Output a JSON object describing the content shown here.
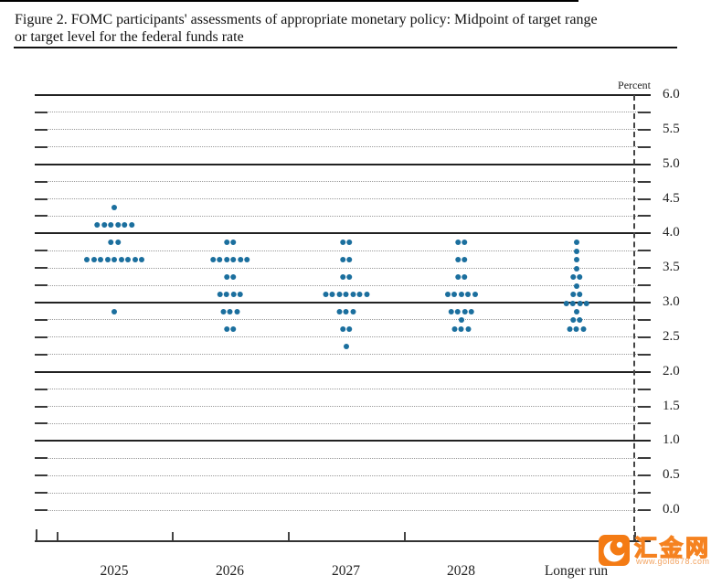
{
  "page": {
    "title_line1": "Figure 2. FOMC participants' assessments of appropriate monetary policy: Midpoint of target range",
    "title_line2": "or target level for the federal funds rate"
  },
  "chart_data": {
    "type": "scatter",
    "title": "FOMC participants' assessments of appropriate monetary policy: Midpoint of target range or target level for the federal funds rate",
    "ylabel": "Percent",
    "dot_color": "#1b6f9e",
    "y_axis": {
      "min": 0.0,
      "max": 6.0,
      "grid_step": 0.25,
      "label_step": 0.5,
      "solid_levels": [
        6.0,
        5.0,
        4.0,
        3.0,
        2.0,
        1.0
      ],
      "tick_labels": [
        "6.0",
        "5.5",
        "5.0",
        "4.5",
        "4.0",
        "3.5",
        "3.0",
        "2.5",
        "2.0",
        "1.5",
        "1.0",
        "0.5",
        "0.0"
      ]
    },
    "categories": [
      "2025",
      "2026",
      "2027",
      "2028",
      "Longer run"
    ],
    "separator_before_category": "Longer run",
    "series": [
      {
        "name": "2025",
        "dots": [
          {
            "rate": 4.375,
            "count": 1
          },
          {
            "rate": 4.125,
            "count": 6
          },
          {
            "rate": 3.875,
            "count": 2
          },
          {
            "rate": 3.625,
            "count": 9
          },
          {
            "rate": 2.875,
            "count": 1
          }
        ]
      },
      {
        "name": "2026",
        "dots": [
          {
            "rate": 3.875,
            "count": 2
          },
          {
            "rate": 3.625,
            "count": 6
          },
          {
            "rate": 3.375,
            "count": 2
          },
          {
            "rate": 3.125,
            "count": 4
          },
          {
            "rate": 2.875,
            "count": 3
          },
          {
            "rate": 2.625,
            "count": 2
          }
        ]
      },
      {
        "name": "2027",
        "dots": [
          {
            "rate": 3.875,
            "count": 2
          },
          {
            "rate": 3.625,
            "count": 2
          },
          {
            "rate": 3.375,
            "count": 2
          },
          {
            "rate": 3.125,
            "count": 7
          },
          {
            "rate": 2.875,
            "count": 3
          },
          {
            "rate": 2.625,
            "count": 2
          },
          {
            "rate": 2.375,
            "count": 1
          }
        ]
      },
      {
        "name": "2028",
        "dots": [
          {
            "rate": 3.875,
            "count": 2
          },
          {
            "rate": 3.625,
            "count": 2
          },
          {
            "rate": 3.375,
            "count": 2
          },
          {
            "rate": 3.125,
            "count": 5
          },
          {
            "rate": 2.875,
            "count": 4
          },
          {
            "rate": 2.75,
            "count": 1
          },
          {
            "rate": 2.625,
            "count": 3
          }
        ]
      },
      {
        "name": "Longer run",
        "dots": [
          {
            "rate": 3.875,
            "count": 1
          },
          {
            "rate": 3.75,
            "count": 1
          },
          {
            "rate": 3.625,
            "count": 1
          },
          {
            "rate": 3.5,
            "count": 1
          },
          {
            "rate": 3.375,
            "count": 2
          },
          {
            "rate": 3.25,
            "count": 1
          },
          {
            "rate": 3.125,
            "count": 2
          },
          {
            "rate": 3.0,
            "count": 4
          },
          {
            "rate": 2.875,
            "count": 1
          },
          {
            "rate": 2.75,
            "count": 2
          },
          {
            "rate": 2.625,
            "count": 3
          }
        ]
      }
    ]
  },
  "watermark": {
    "site_name": "汇金网",
    "site_url": "www.gold678.com",
    "orange": "#f47b14"
  }
}
